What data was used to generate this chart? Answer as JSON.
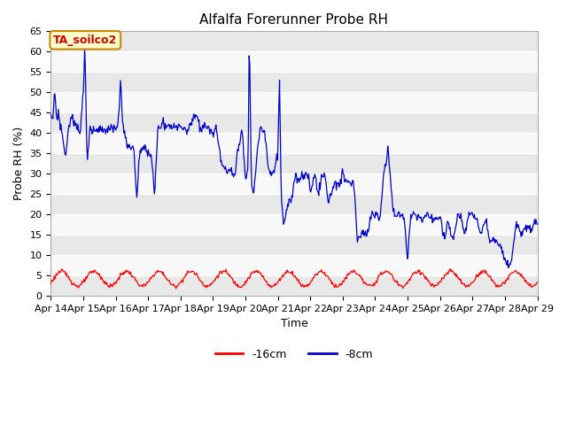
{
  "title": "Alfalfa Forerunner Probe RH",
  "ylabel": "Probe RH (%)",
  "xlabel": "Time",
  "ylim": [
    0,
    65
  ],
  "yticks": [
    0,
    5,
    10,
    15,
    20,
    25,
    30,
    35,
    40,
    45,
    50,
    55,
    60,
    65
  ],
  "xtick_labels": [
    "Apr 14",
    "Apr 15",
    "Apr 16",
    "Apr 17",
    "Apr 18",
    "Apr 19",
    "Apr 20",
    "Apr 21",
    "Apr 22",
    "Apr 23",
    "Apr 24",
    "Apr 25",
    "Apr 26",
    "Apr 27",
    "Apr 28",
    "Apr 29"
  ],
  "legend_labels": [
    "-16cm",
    "-8cm"
  ],
  "line_16cm_color": "#ff0000",
  "line_8cm_color": "#0000cc",
  "fig_bg_color": "#ffffff",
  "plot_bg_color": "#e8e8e8",
  "annotation_text": "TA_soilco2",
  "annotation_bg": "#ffffcc",
  "annotation_border": "#cc8800",
  "annotation_text_color": "#cc0000",
  "title_fontsize": 11,
  "axis_fontsize": 9,
  "tick_fontsize": 8,
  "band_colors": [
    "#e8e8e8",
    "#f8f8f8"
  ]
}
